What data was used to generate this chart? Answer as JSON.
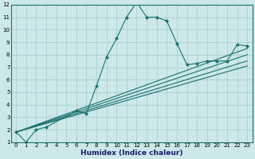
{
  "xlabel": "Humidex (Indice chaleur)",
  "xlim": [
    -0.5,
    23.5
  ],
  "ylim": [
    1,
    12
  ],
  "xticks": [
    0,
    1,
    2,
    3,
    4,
    5,
    6,
    7,
    8,
    9,
    10,
    11,
    12,
    13,
    14,
    15,
    16,
    17,
    18,
    19,
    20,
    21,
    22,
    23
  ],
  "yticks": [
    1,
    2,
    3,
    4,
    5,
    6,
    7,
    8,
    9,
    10,
    11,
    12
  ],
  "background_color": "#cce8e8",
  "grid_color": "#aacfcf",
  "line_color": "#1a7070",
  "main_line": {
    "x": [
      0,
      1,
      2,
      3,
      6,
      7,
      8,
      9,
      10,
      11,
      12,
      13,
      14,
      15,
      16,
      17,
      18,
      19,
      20,
      21,
      22,
      23
    ],
    "y": [
      1.8,
      1.0,
      2.0,
      2.2,
      3.5,
      3.3,
      5.5,
      7.8,
      9.3,
      11.0,
      12.2,
      11.0,
      11.0,
      10.7,
      8.9,
      7.2,
      7.3,
      7.5,
      7.5,
      7.5,
      8.8,
      8.7
    ]
  },
  "diagonal_lines": [
    {
      "x": [
        0,
        23
      ],
      "y": [
        1.8,
        8.5
      ]
    },
    {
      "x": [
        0,
        23
      ],
      "y": [
        1.8,
        8.0
      ]
    },
    {
      "x": [
        0,
        23
      ],
      "y": [
        1.8,
        7.5
      ]
    },
    {
      "x": [
        0,
        23
      ],
      "y": [
        1.8,
        7.1
      ]
    }
  ]
}
